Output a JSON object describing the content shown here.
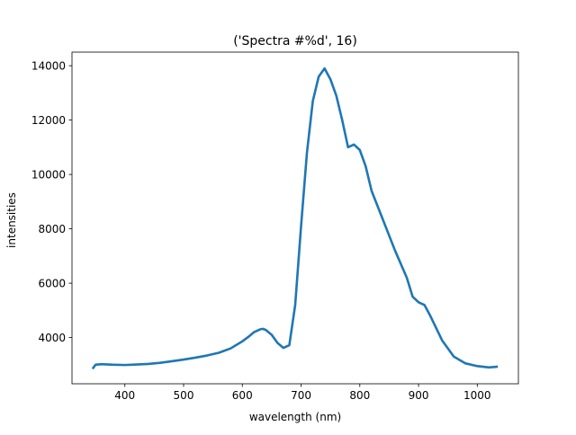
{
  "chart_data": {
    "type": "line",
    "title": "('Spectra #%d', 16)",
    "xlabel": "wavelength (nm)",
    "ylabel": "intensities",
    "xlim": [
      310,
      1070
    ],
    "ylim": [
      2300,
      14500
    ],
    "x_ticks": [
      400,
      500,
      600,
      700,
      800,
      900,
      1000
    ],
    "y_ticks": [
      4000,
      6000,
      8000,
      10000,
      12000,
      14000
    ],
    "grid": false,
    "legend": "none",
    "series": [
      {
        "color": "#1f77b4",
        "x": [
          345,
          350,
          360,
          380,
          400,
          420,
          440,
          460,
          480,
          500,
          520,
          540,
          560,
          580,
          600,
          610,
          620,
          630,
          635,
          640,
          650,
          660,
          670,
          680,
          690,
          700,
          710,
          720,
          730,
          740,
          745,
          750,
          760,
          770,
          780,
          790,
          800,
          810,
          820,
          840,
          860,
          880,
          890,
          900,
          910,
          920,
          940,
          960,
          980,
          1000,
          1020,
          1035
        ],
        "y": [
          2850,
          3000,
          3020,
          3000,
          2990,
          3010,
          3030,
          3070,
          3130,
          3190,
          3260,
          3340,
          3440,
          3600,
          3860,
          4020,
          4200,
          4300,
          4320,
          4280,
          4100,
          3800,
          3620,
          3720,
          5200,
          8100,
          10800,
          12700,
          13600,
          13900,
          13700,
          13500,
          12900,
          12000,
          11000,
          11100,
          10900,
          10300,
          9400,
          8300,
          7200,
          6200,
          5500,
          5300,
          5200,
          4800,
          3900,
          3300,
          3050,
          2950,
          2900,
          2930
        ]
      }
    ]
  }
}
